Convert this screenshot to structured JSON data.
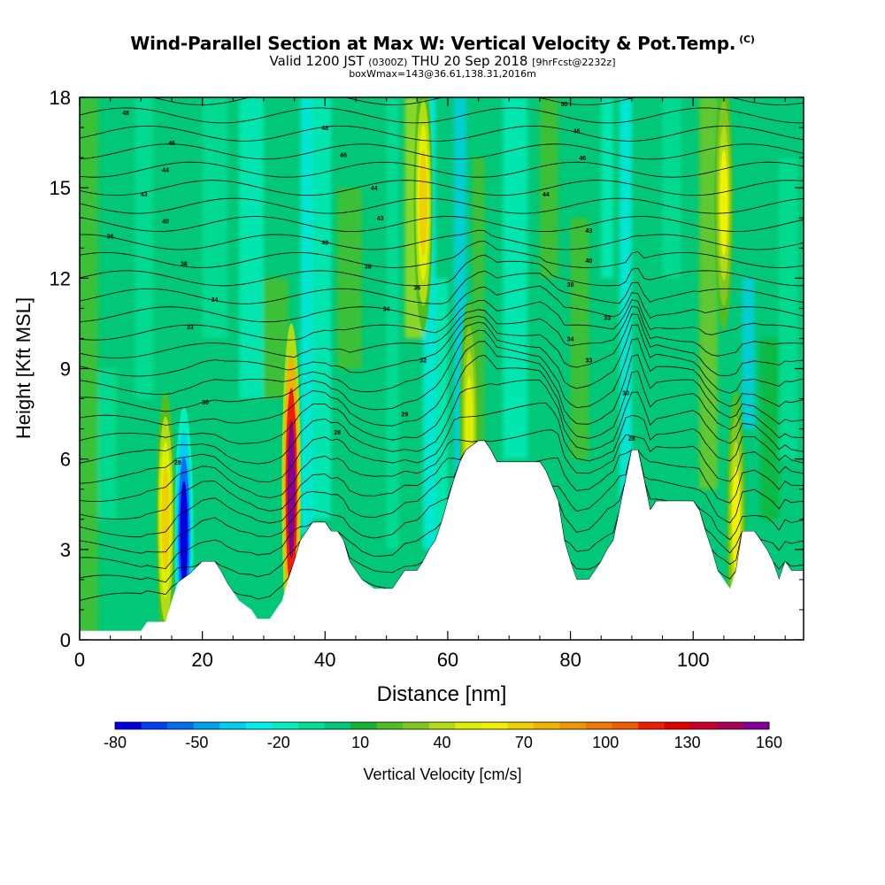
{
  "header": {
    "title": "Wind-Parallel Section at Max W: Vertical Velocity & Pot.Temp.",
    "copyright": "(C)",
    "valid_main": "Valid 1200 JST",
    "valid_utc": "(0300Z)",
    "valid_date": "THU 20 Sep 2018",
    "forecast": "[9hrFcst@2232z]",
    "box_info": "boxWmax=143@36.61,138.31,2016m"
  },
  "chart_data": {
    "type": "heatmap",
    "xlabel": "Distance [nm]",
    "ylabel": "Height [Kft MSL]",
    "xlim": [
      0,
      118
    ],
    "ylim": [
      0,
      18
    ],
    "x_ticks": [
      0,
      20,
      40,
      60,
      80,
      100
    ],
    "y_ticks": [
      0,
      3,
      6,
      9,
      12,
      15,
      18
    ],
    "colorbar": {
      "label": "Vertical Velocity [cm/s]",
      "tick_labels": [
        -80,
        -50,
        -20,
        10,
        40,
        70,
        100,
        130,
        160
      ],
      "min": -80,
      "max": 160,
      "step": 10,
      "colors": [
        "#0000e0",
        "#0040f0",
        "#0070f0",
        "#00a0f0",
        "#00d0f0",
        "#00f0f0",
        "#00f0c0",
        "#00e098",
        "#00c878",
        "#14b432",
        "#50be20",
        "#80c81e",
        "#b4dc14",
        "#dcf000",
        "#f0f000",
        "#f0d000",
        "#f0b400",
        "#f09600",
        "#f07800",
        "#f05a00",
        "#f01e00",
        "#e00000",
        "#c8002a",
        "#aa0056",
        "#820096"
      ]
    },
    "terrain_kft": [
      [
        0,
        0.3
      ],
      [
        10,
        0.3
      ],
      [
        11,
        0.6
      ],
      [
        14,
        0.6
      ],
      [
        15,
        1.3
      ],
      [
        16,
        1.9
      ],
      [
        18,
        2.2
      ],
      [
        20,
        2.6
      ],
      [
        22,
        2.6
      ],
      [
        23,
        2.3
      ],
      [
        24,
        1.9
      ],
      [
        25,
        1.6
      ],
      [
        26,
        1.3
      ],
      [
        28,
        1.0
      ],
      [
        29,
        0.7
      ],
      [
        31,
        0.7
      ],
      [
        32,
        1.0
      ],
      [
        33,
        1.3
      ],
      [
        34,
        2.0
      ],
      [
        35,
        2.6
      ],
      [
        36,
        3.3
      ],
      [
        37,
        3.6
      ],
      [
        38,
        3.9
      ],
      [
        40,
        3.9
      ],
      [
        41,
        3.6
      ],
      [
        42,
        3.6
      ],
      [
        43,
        3.3
      ],
      [
        44,
        2.6
      ],
      [
        45,
        2.3
      ],
      [
        46,
        2.0
      ],
      [
        48,
        1.7
      ],
      [
        51,
        1.7
      ],
      [
        52,
        2.0
      ],
      [
        53,
        2.3
      ],
      [
        55,
        2.3
      ],
      [
        56,
        2.6
      ],
      [
        57,
        3.0
      ],
      [
        58,
        3.3
      ],
      [
        59,
        3.9
      ],
      [
        60,
        4.6
      ],
      [
        61,
        5.3
      ],
      [
        62,
        5.9
      ],
      [
        63,
        6.3
      ],
      [
        65,
        6.6
      ],
      [
        66,
        6.6
      ],
      [
        67,
        6.3
      ],
      [
        68,
        5.9
      ],
      [
        75,
        5.9
      ],
      [
        76,
        5.6
      ],
      [
        78,
        4.6
      ],
      [
        79,
        3.3
      ],
      [
        80,
        2.6
      ],
      [
        81,
        2.0
      ],
      [
        83,
        2.0
      ],
      [
        84,
        2.3
      ],
      [
        85,
        2.6
      ],
      [
        86,
        3.0
      ],
      [
        87,
        3.3
      ],
      [
        88,
        4.3
      ],
      [
        89,
        5.3
      ],
      [
        90,
        6.3
      ],
      [
        91,
        6.3
      ],
      [
        92,
        5.3
      ],
      [
        93,
        4.3
      ],
      [
        94,
        4.6
      ],
      [
        100,
        4.6
      ],
      [
        101,
        4.3
      ],
      [
        102,
        3.6
      ],
      [
        103,
        3.0
      ],
      [
        104,
        2.3
      ],
      [
        105,
        2.0
      ],
      [
        106,
        1.7
      ],
      [
        107,
        2.3
      ],
      [
        108,
        3.6
      ],
      [
        110,
        3.6
      ],
      [
        111,
        3.3
      ],
      [
        112,
        3.0
      ],
      [
        113,
        2.6
      ],
      [
        114,
        2.0
      ],
      [
        115,
        2.6
      ],
      [
        116,
        2.3
      ],
      [
        118,
        2.3
      ]
    ],
    "theta_contour_labels": [
      {
        "label": "48",
        "x": 7.5,
        "y": 17.5
      },
      {
        "label": "48",
        "x": 40,
        "y": 17.0
      },
      {
        "label": "50",
        "x": 79,
        "y": 17.8
      },
      {
        "label": "46",
        "x": 15,
        "y": 16.5
      },
      {
        "label": "46",
        "x": 81,
        "y": 16.9
      },
      {
        "label": "46",
        "x": 43,
        "y": 16.1
      },
      {
        "label": "44",
        "x": 14,
        "y": 15.6
      },
      {
        "label": "46",
        "x": 82,
        "y": 16.0
      },
      {
        "label": "44",
        "x": 48,
        "y": 15.0
      },
      {
        "label": "43",
        "x": 10.5,
        "y": 14.8
      },
      {
        "label": "44",
        "x": 76,
        "y": 14.8
      },
      {
        "label": "43",
        "x": 49,
        "y": 14.0
      },
      {
        "label": "40",
        "x": 14,
        "y": 13.9
      },
      {
        "label": "43",
        "x": 83,
        "y": 13.6
      },
      {
        "label": "36",
        "x": 5,
        "y": 13.4
      },
      {
        "label": "40",
        "x": 40,
        "y": 13.2
      },
      {
        "label": "40",
        "x": 83,
        "y": 12.6
      },
      {
        "label": "38",
        "x": 17,
        "y": 12.5
      },
      {
        "label": "38",
        "x": 47,
        "y": 12.4
      },
      {
        "label": "36",
        "x": 55,
        "y": 11.7
      },
      {
        "label": "38",
        "x": 80,
        "y": 11.8
      },
      {
        "label": "34",
        "x": 22,
        "y": 11.3
      },
      {
        "label": "34",
        "x": 50,
        "y": 11.0
      },
      {
        "label": "33",
        "x": 86,
        "y": 10.7
      },
      {
        "label": "33",
        "x": 18,
        "y": 10.4
      },
      {
        "label": "34",
        "x": 80,
        "y": 10.0
      },
      {
        "label": "32",
        "x": 56,
        "y": 9.3
      },
      {
        "label": "33",
        "x": 83,
        "y": 9.3
      },
      {
        "label": "30",
        "x": 20.5,
        "y": 7.9
      },
      {
        "label": "30",
        "x": 89,
        "y": 8.2
      },
      {
        "label": "29",
        "x": 53,
        "y": 7.5
      },
      {
        "label": "28",
        "x": 42,
        "y": 6.9
      },
      {
        "label": "28",
        "x": 90,
        "y": 6.7
      },
      {
        "label": "28",
        "x": 16,
        "y": 5.9
      }
    ],
    "w_features": [
      {
        "x": 17,
        "y": 3.5,
        "w": -80
      },
      {
        "x": 14,
        "y": 4.0,
        "w": 75
      },
      {
        "x": 34.5,
        "y": 5.0,
        "w": 160
      },
      {
        "x": 56,
        "y": 14.5,
        "w": 70
      },
      {
        "x": 105,
        "y": 14.5,
        "w": 60
      },
      {
        "x": 63.5,
        "y": 7.0,
        "w": 55
      },
      {
        "x": 107,
        "y": 4.0,
        "w": 60
      }
    ]
  }
}
